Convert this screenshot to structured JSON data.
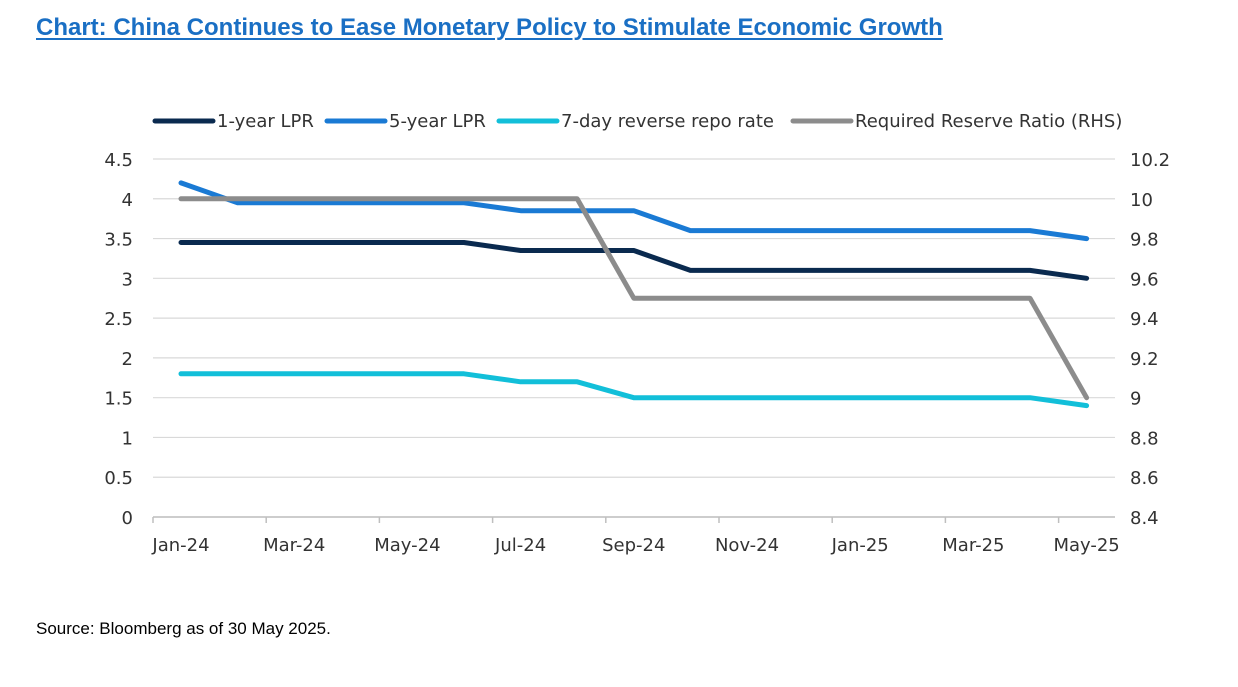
{
  "title": "Chart: China Continues to Ease Monetary Policy to Stimulate Economic Growth",
  "source": "Source: Bloomberg as of 30 May 2025.",
  "chart_data": {
    "type": "line",
    "x": [
      "Jan-24",
      "Feb-24",
      "Mar-24",
      "Apr-24",
      "May-24",
      "Jun-24",
      "Jul-24",
      "Aug-24",
      "Sep-24",
      "Oct-24",
      "Nov-24",
      "Dec-24",
      "Jan-25",
      "Feb-25",
      "Mar-25",
      "Apr-25",
      "May-25"
    ],
    "xtick_labels": [
      "Jan-24",
      "Mar-24",
      "May-24",
      "Jul-24",
      "Sep-24",
      "Nov-24",
      "Jan-25",
      "Mar-25",
      "May-25"
    ],
    "y_left": {
      "ticks": [
        "0",
        "0.5",
        "1",
        "1.5",
        "2",
        "2.5",
        "3",
        "3.5",
        "4",
        "4.5"
      ],
      "lim": [
        0,
        4.5
      ]
    },
    "y_right": {
      "ticks": [
        "8.4",
        "8.6",
        "8.8",
        "9",
        "9.2",
        "9.4",
        "9.6",
        "9.8",
        "10",
        "10.2"
      ],
      "lim": [
        8.4,
        10.2
      ]
    },
    "grid": "horizontal",
    "legend_position": "top",
    "series": [
      {
        "name": "1-year LPR",
        "axis": "left",
        "color": "#0a2a4f",
        "values": [
          3.45,
          3.45,
          3.45,
          3.45,
          3.45,
          3.45,
          3.35,
          3.35,
          3.35,
          3.1,
          3.1,
          3.1,
          3.1,
          3.1,
          3.1,
          3.1,
          3.0
        ]
      },
      {
        "name": "5-year LPR",
        "axis": "left",
        "color": "#1a7ad4",
        "values": [
          4.2,
          3.95,
          3.95,
          3.95,
          3.95,
          3.95,
          3.85,
          3.85,
          3.85,
          3.6,
          3.6,
          3.6,
          3.6,
          3.6,
          3.6,
          3.6,
          3.5
        ]
      },
      {
        "name": "7-day reverse repo rate",
        "axis": "left",
        "color": "#12bfd9",
        "values": [
          1.8,
          1.8,
          1.8,
          1.8,
          1.8,
          1.8,
          1.7,
          1.7,
          1.5,
          1.5,
          1.5,
          1.5,
          1.5,
          1.5,
          1.5,
          1.5,
          1.4
        ]
      },
      {
        "name": "Required Reserve Ratio (RHS)",
        "axis": "right",
        "color": "#8c8c8c",
        "values": [
          10,
          10,
          10,
          10,
          10,
          10,
          10,
          10,
          9.5,
          9.5,
          9.5,
          9.5,
          9.5,
          9.5,
          9.5,
          9.5,
          9.0
        ]
      }
    ]
  }
}
